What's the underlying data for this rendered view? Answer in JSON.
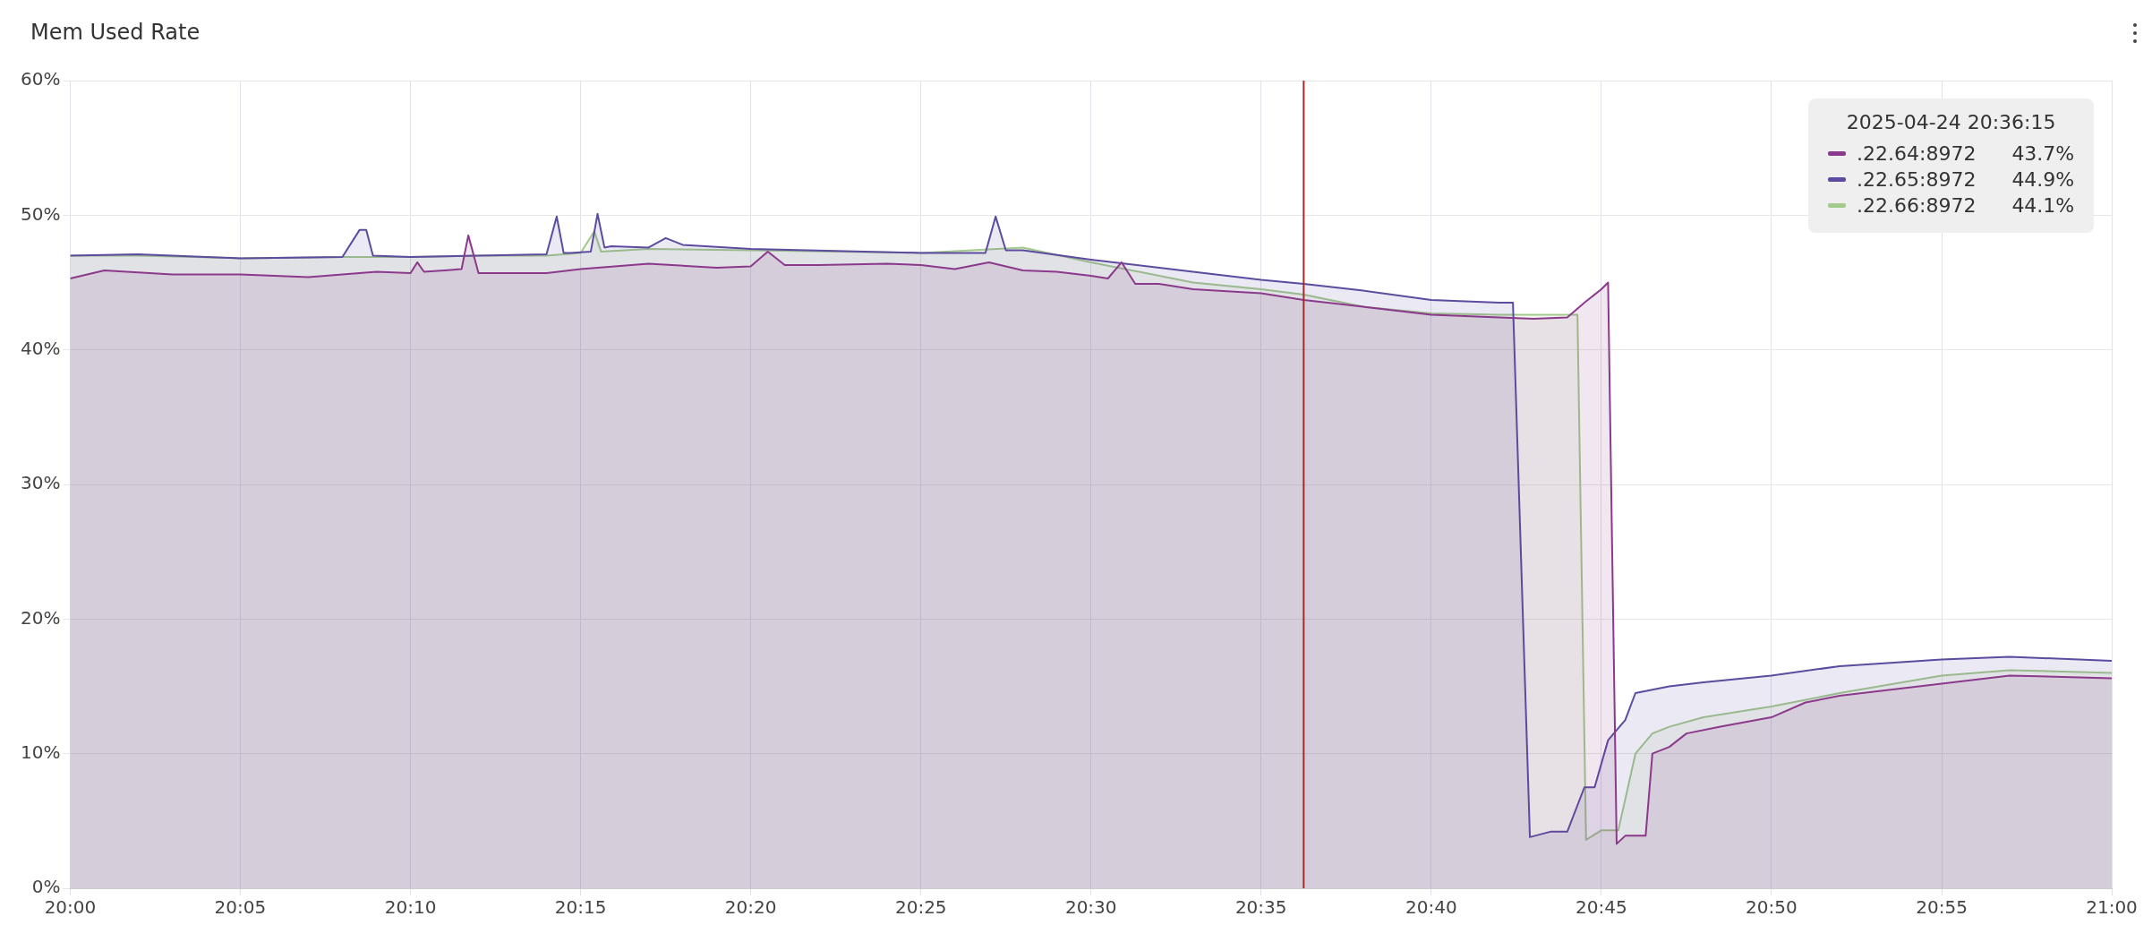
{
  "chart_data": {
    "type": "area",
    "title": "Mem Used Rate",
    "xlim": [
      20,
      21
    ],
    "xticks": [
      {
        "value": 20,
        "label": "20:00"
      },
      {
        "value": 20.0833,
        "label": "20:05"
      },
      {
        "value": 20.1667,
        "label": "20:10"
      },
      {
        "value": 20.25,
        "label": "20:15"
      },
      {
        "value": 20.3333,
        "label": "20:20"
      },
      {
        "value": 20.4167,
        "label": "20:25"
      },
      {
        "value": 20.5,
        "label": "20:30"
      },
      {
        "value": 20.5833,
        "label": "20:35"
      },
      {
        "value": 20.6667,
        "label": "20:40"
      },
      {
        "value": 20.75,
        "label": "20:45"
      },
      {
        "value": 20.8333,
        "label": "20:50"
      },
      {
        "value": 20.9167,
        "label": "20:55"
      },
      {
        "value": 21,
        "label": "21:00"
      }
    ],
    "ylim": [
      0,
      60
    ],
    "yticks": [
      {
        "value": 0,
        "label": "0%"
      },
      {
        "value": 10,
        "label": "10%"
      },
      {
        "value": 20,
        "label": "20%"
      },
      {
        "value": 30,
        "label": "30%"
      },
      {
        "value": 40,
        "label": "40%"
      },
      {
        "value": 50,
        "label": "50%"
      },
      {
        "value": 60,
        "label": "60%"
      }
    ],
    "grid": true,
    "legend": "top right",
    "marker": "none",
    "line_style": "solid",
    "annotations": [
      "2025-04-24 20:36:15",
      "43.7%",
      "44.9%",
      "44.1%"
    ],
    "ref_lines": [
      {
        "axis": "x",
        "value": 20.6042,
        "label": null,
        "color": "#a52a2a"
      }
    ],
    "series": [
      {
        "name": ".22.64:8972",
        "color": "#8b3a8b",
        "x": [
          20,
          20.0167,
          20.05,
          20.0833,
          20.1167,
          20.15,
          20.1667,
          20.17,
          20.1733,
          20.1833,
          20.1917,
          20.195,
          20.2,
          20.2083,
          20.2333,
          20.25,
          20.2667,
          20.2833,
          20.3167,
          20.3333,
          20.3417,
          20.35,
          20.3667,
          20.4,
          20.4167,
          20.4333,
          20.45,
          20.4667,
          20.4833,
          20.5,
          20.5083,
          20.515,
          20.5217,
          20.5333,
          20.55,
          20.5833,
          20.6042,
          20.6333,
          20.6667,
          20.7,
          20.7167,
          20.7333,
          20.7417,
          20.75,
          20.7533,
          20.7575,
          20.7617,
          20.7717,
          20.775,
          20.7833,
          20.7917,
          20.8083,
          20.8333,
          20.85,
          20.8667,
          20.9167,
          20.95,
          21
        ],
        "values": [
          45.3,
          45.9,
          45.6,
          45.6,
          45.4,
          45.8,
          45.7,
          46.5,
          45.8,
          45.9,
          46,
          48.5,
          45.7,
          45.7,
          45.7,
          46,
          46.2,
          46.4,
          46.1,
          46.2,
          47.3,
          46.3,
          46.3,
          46.4,
          46.3,
          46,
          46.5,
          45.9,
          45.8,
          45.5,
          45.3,
          46.5,
          44.9,
          44.9,
          44.5,
          44.2,
          43.7,
          43.2,
          42.6,
          42.4,
          42.3,
          42.4,
          43.5,
          44.5,
          45,
          3.3,
          3.9,
          3.9,
          10,
          10.5,
          11.5,
          12,
          12.7,
          13.8,
          14.3,
          15.2,
          15.8,
          15.6
        ]
      },
      {
        "name": ".22.65:8972",
        "color": "#5c4b9e",
        "x": [
          20,
          20.0333,
          20.0833,
          20.1333,
          20.1417,
          20.145,
          20.1483,
          20.1667,
          20.2,
          20.2333,
          20.2383,
          20.2417,
          20.245,
          20.255,
          20.2583,
          20.2617,
          20.265,
          20.2833,
          20.2917,
          20.3,
          20.3333,
          20.4167,
          20.4483,
          20.4533,
          20.4583,
          20.4667,
          20.5,
          20.55,
          20.5833,
          20.6042,
          20.6333,
          20.6667,
          20.7,
          20.7067,
          20.715,
          20.725,
          20.7333,
          20.7417,
          20.7467,
          20.7533,
          20.7617,
          20.7667,
          20.7833,
          20.8,
          20.8333,
          20.8667,
          20.9167,
          20.95,
          21
        ],
        "values": [
          47,
          47.1,
          46.8,
          46.9,
          48.9,
          48.9,
          47,
          46.9,
          47,
          47.1,
          49.9,
          47.2,
          47.2,
          47.3,
          50.1,
          47.6,
          47.7,
          47.6,
          48.3,
          47.8,
          47.5,
          47.2,
          47.2,
          49.9,
          47.4,
          47.4,
          46.7,
          45.8,
          45.2,
          44.9,
          44.4,
          43.7,
          43.5,
          43.5,
          3.8,
          4.2,
          4.2,
          7.5,
          7.5,
          11,
          12.5,
          14.5,
          15,
          15.3,
          15.8,
          16.5,
          17,
          17.2,
          16.9
        ]
      },
      {
        "name": ".22.66:8972",
        "color": "#a3c98c",
        "x": [
          20,
          20.0333,
          20.0833,
          20.1333,
          20.1667,
          20.2,
          20.2333,
          20.25,
          20.2567,
          20.26,
          20.2833,
          20.3333,
          20.4167,
          20.4667,
          20.5,
          20.55,
          20.5833,
          20.6042,
          20.6333,
          20.6667,
          20.7,
          20.7383,
          20.7425,
          20.75,
          20.7583,
          20.7667,
          20.775,
          20.7833,
          20.8,
          20.8333,
          20.8667,
          20.9167,
          20.95,
          21
        ],
        "values": [
          47,
          47,
          46.8,
          46.9,
          46.9,
          47,
          47,
          47.2,
          48.8,
          47.3,
          47.5,
          47.4,
          47.2,
          47.6,
          46.5,
          45,
          44.5,
          44.1,
          43.2,
          42.7,
          42.6,
          42.6,
          3.6,
          4.3,
          4.3,
          10,
          11.5,
          12,
          12.7,
          13.5,
          14.5,
          15.8,
          16.2,
          16
        ]
      }
    ]
  }
}
